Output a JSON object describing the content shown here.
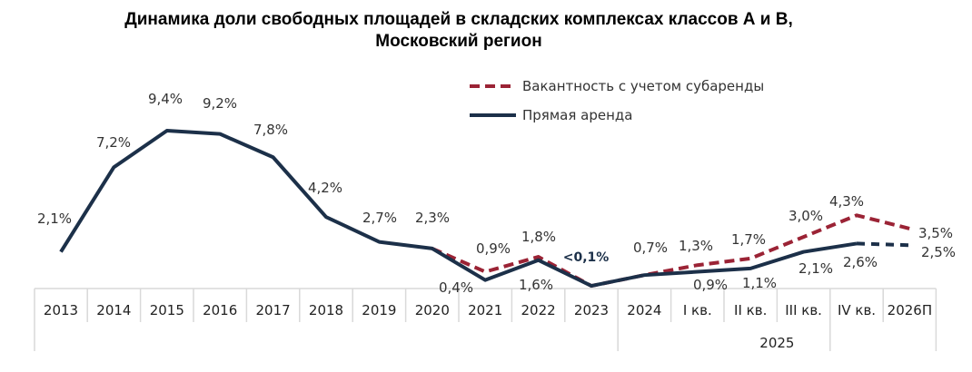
{
  "chart_data": {
    "type": "line",
    "title": "Динамика доли свободных площадей в складских комплексах классов А и В,",
    "title_line2": "Московский регион",
    "categories": [
      "2013",
      "2014",
      "2015",
      "2016",
      "2017",
      "2018",
      "2019",
      "2020",
      "2021",
      "2022",
      "2023",
      "2024",
      "I кв.",
      "II кв.",
      "III кв.",
      "IV кв.",
      "2026П"
    ],
    "category_group": {
      "label": "2025",
      "members": [
        "I кв.",
        "II кв.",
        "III кв.",
        "IV кв."
      ]
    },
    "ylim": [
      0,
      10
    ],
    "grid": false,
    "legend_position": "top-right",
    "series": [
      {
        "name": "Вакантность с учетом субаренды",
        "color": "#9b2335",
        "style": "dashed",
        "values": [
          null,
          null,
          null,
          null,
          null,
          null,
          null,
          2.3,
          0.9,
          1.8,
          0.05,
          0.7,
          1.3,
          1.7,
          3.0,
          4.3,
          3.5
        ],
        "labels": [
          null,
          null,
          null,
          null,
          null,
          null,
          null,
          null,
          "0,9%",
          "1,8%",
          null,
          null,
          "1,3%",
          "1,7%",
          "3,0%",
          "4,3%",
          "3,5%"
        ]
      },
      {
        "name": "Прямая аренда",
        "color": "#1c3049",
        "style": "solid",
        "forecast_style": "dashed",
        "values": [
          2.1,
          7.2,
          9.4,
          9.2,
          7.8,
          4.2,
          2.7,
          2.3,
          0.4,
          1.6,
          0.05,
          0.7,
          0.9,
          1.1,
          2.1,
          2.6,
          2.5
        ],
        "labels": [
          "2,1%",
          "7,2%",
          "9,4%",
          "9,2%",
          "7,8%",
          "4,2%",
          "2,7%",
          "2,3%",
          "0,4%",
          "1,6%",
          "<0,1%",
          "0,7%",
          "0,9%",
          "1,1%",
          "2,1%",
          "2,6%",
          "2,5%"
        ]
      }
    ]
  }
}
